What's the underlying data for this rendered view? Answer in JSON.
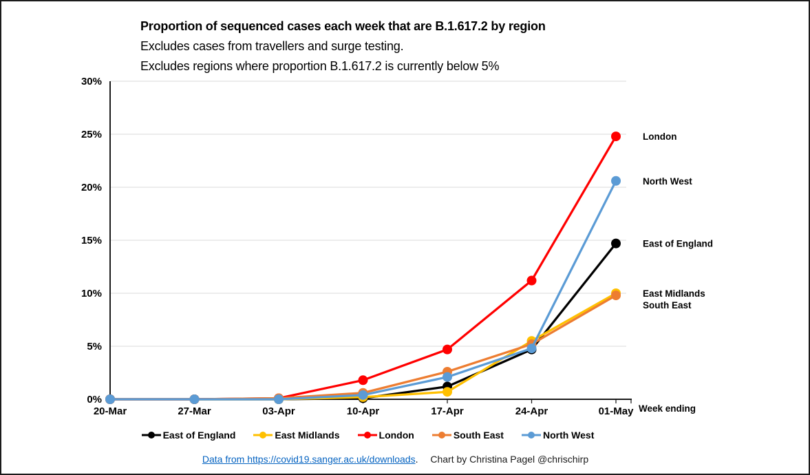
{
  "chart_data": {
    "type": "line",
    "title": "Proportion of sequenced cases each week that are B.1.617.2 by region",
    "subtitle_lines": [
      "Excludes cases from travellers and surge testing.",
      "Excludes regions where proportion B.1.617.2 is currently below 5%"
    ],
    "xlabel": "Week ending",
    "categories": [
      "20-Mar",
      "27-Mar",
      "03-Apr",
      "10-Apr",
      "17-Apr",
      "24-Apr",
      "01-May"
    ],
    "series": [
      {
        "name": "East of England",
        "color": "#000000",
        "values": [
          0,
          0,
          0,
          0.1,
          1.2,
          4.7,
          14.7
        ]
      },
      {
        "name": "East Midlands",
        "color": "#FFC000",
        "values": [
          0,
          0,
          0,
          0.2,
          0.7,
          5.5,
          10.0
        ]
      },
      {
        "name": "London",
        "color": "#FF0000",
        "values": [
          0,
          0,
          0.1,
          1.8,
          4.7,
          11.2,
          24.8
        ]
      },
      {
        "name": "South East",
        "color": "#ED7D31",
        "values": [
          0,
          0,
          0.1,
          0.6,
          2.6,
          5.2,
          9.8
        ]
      },
      {
        "name": "North West",
        "color": "#5B9BD5",
        "values": [
          0,
          0,
          0,
          0.4,
          2.1,
          4.8,
          20.6
        ]
      }
    ],
    "ylim": [
      0,
      30
    ],
    "ytick_step": 5,
    "ytick_suffix": "%",
    "grid": true,
    "gridline_color": "#D9D9D9",
    "axis_color": "#1a1a1a",
    "legend_position": "bottom",
    "end_labels": true
  },
  "footer": {
    "link_text": "Data from https://covid19.sanger.ac.uk/downloads",
    "separator": ".",
    "credit": "Chart by Christina Pagel @chrischirp"
  }
}
